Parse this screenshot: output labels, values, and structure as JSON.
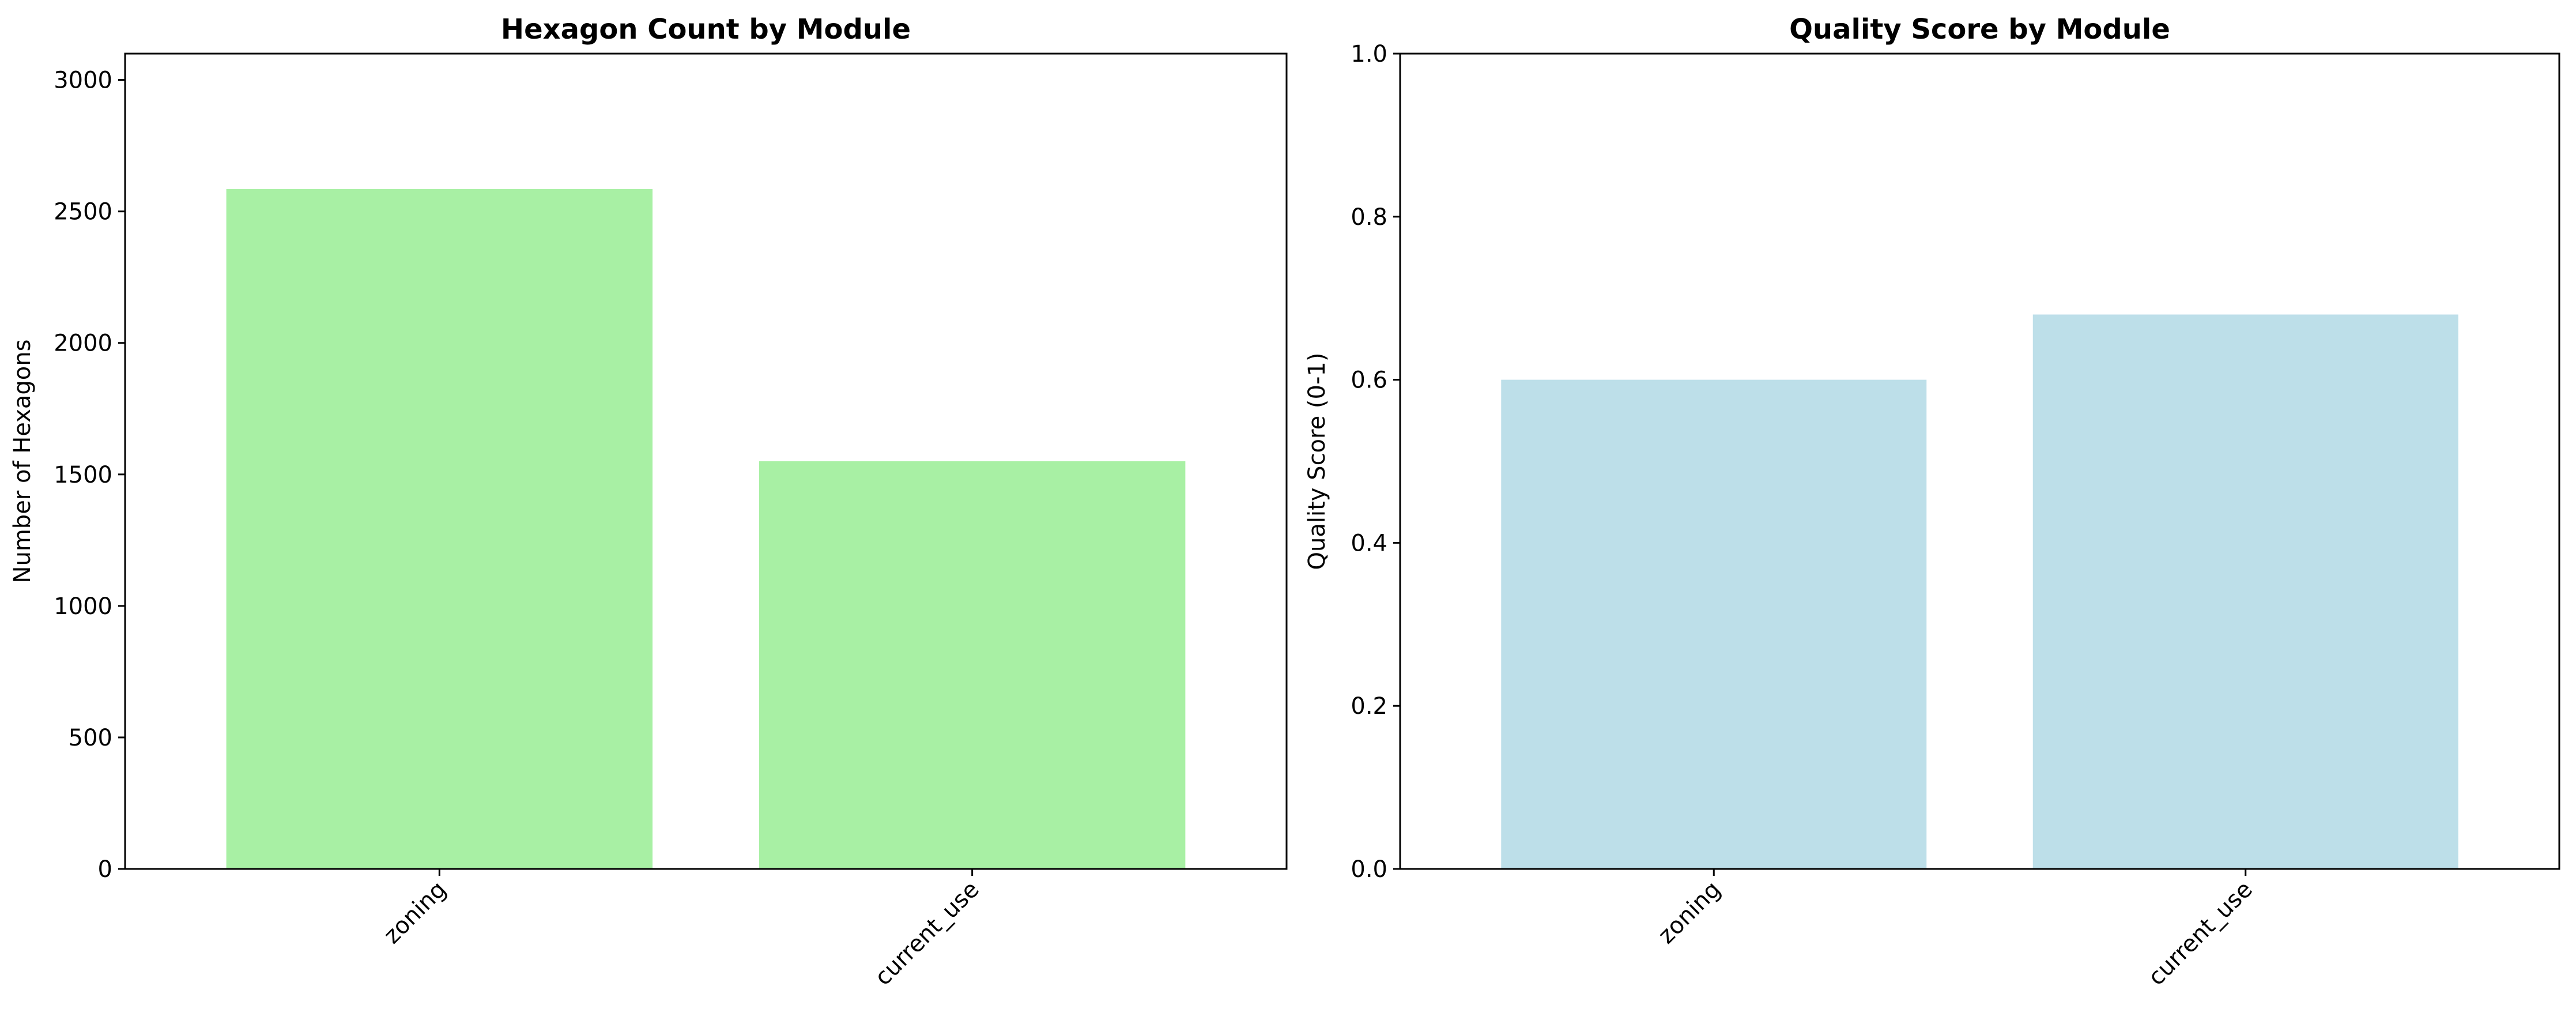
{
  "chart_data": [
    {
      "type": "bar",
      "title": "Hexagon Count by Module",
      "xlabel": "",
      "ylabel": "Number of Hexagons",
      "categories": [
        "zoning",
        "current_use"
      ],
      "values": [
        2585,
        1550
      ],
      "ylim": [
        0,
        3100
      ],
      "yticks": [
        0,
        500,
        1000,
        1500,
        2000,
        2500,
        3000
      ],
      "ytick_labels": [
        "0",
        "500",
        "1000",
        "1500",
        "2000",
        "2500",
        "3000"
      ],
      "xtick_rotation": 45,
      "bar_color": "#a8f0a4",
      "grid": false
    },
    {
      "type": "bar",
      "title": "Quality Score by Module",
      "xlabel": "",
      "ylabel": "Quality Score (0-1)",
      "categories": [
        "zoning",
        "current_use"
      ],
      "values": [
        0.6,
        0.68
      ],
      "ylim": [
        0,
        1.0
      ],
      "yticks": [
        0,
        0.2,
        0.4,
        0.6,
        0.8,
        1.0
      ],
      "ytick_labels": [
        "0.0",
        "0.2",
        "0.4",
        "0.6",
        "0.8",
        "1.0"
      ],
      "xtick_rotation": 45,
      "bar_color": "#bddfe9",
      "grid": false
    }
  ]
}
